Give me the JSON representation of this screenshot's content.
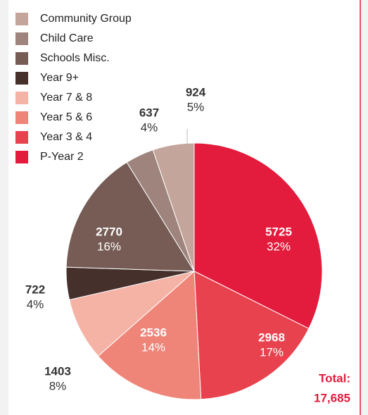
{
  "chart_data": {
    "type": "pie",
    "categories": [
      "P-Year 2",
      "Year 3 & 4",
      "Year 5 & 6",
      "Year 7 & 8",
      "Year 9+",
      "Schools Misc.",
      "Child Care",
      "Community Group"
    ],
    "values": [
      5725,
      2968,
      2536,
      1403,
      722,
      2770,
      637,
      924
    ],
    "percent_labels": [
      "32%",
      "17%",
      "14%",
      "8%",
      "4%",
      "16%",
      "4%",
      "5%"
    ],
    "colors": [
      "#e31b3c",
      "#e8424f",
      "#ef8478",
      "#f5b3a6",
      "#45302c",
      "#765c55",
      "#9e847c",
      "#c4a59b"
    ],
    "total": {
      "label": "Total:",
      "value": "17,685"
    }
  }
}
